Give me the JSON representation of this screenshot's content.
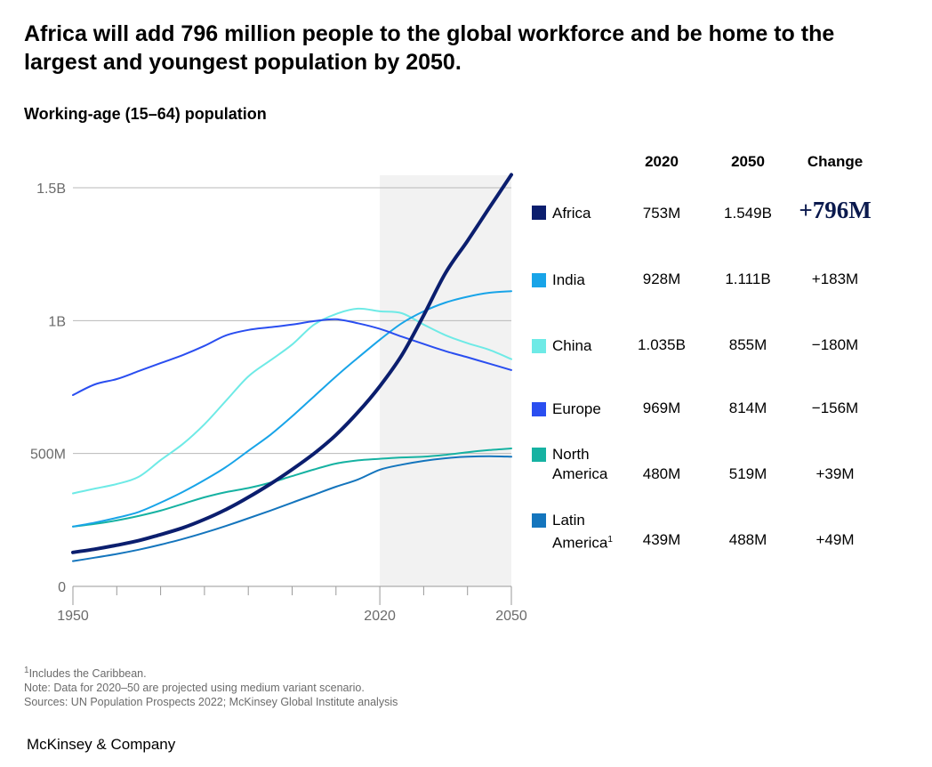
{
  "title": "Africa will add 796 million people to the global workforce and be home to the largest and youngest population by 2050.",
  "subtitle": "Working-age (15–64) population",
  "table": {
    "headers": {
      "col2020": "2020",
      "col2050": "2050",
      "change": "Change"
    },
    "rows": [
      {
        "name": "Africa",
        "sup": "",
        "color": "#0b1e6e",
        "v2020": "753M",
        "v2050": "1.549B",
        "change": "+796M"
      },
      {
        "name": "India",
        "sup": "",
        "color": "#18a4e8",
        "v2020": "928M",
        "v2050": "1.111B",
        "change": "+183M"
      },
      {
        "name": "China",
        "sup": "",
        "color": "#6eeae6",
        "v2020": "1.035B",
        "v2050": "855M",
        "change": "−180M"
      },
      {
        "name": "Europe",
        "sup": "",
        "color": "#2a4ef0",
        "v2020": "969M",
        "v2050": "814M",
        "change": "−156M"
      },
      {
        "name": "North America",
        "sup": "",
        "color": "#16b2a2",
        "v2020": "480M",
        "v2050": "519M",
        "change": "+39M"
      },
      {
        "name": "Latin America",
        "sup": "1",
        "color": "#1475bd",
        "v2020": "439M",
        "v2050": "488M",
        "change": "+49M"
      }
    ]
  },
  "footnotes": {
    "note1_sup": "1",
    "note1": "Includes the Caribbean.",
    "note2": "Note: Data for 2020–50 are projected using medium variant scenario.",
    "note3": "Sources: UN Population Prospects 2022; McKinsey Global Institute analysis"
  },
  "brand": "McKinsey & Company",
  "chart_data": {
    "type": "line",
    "title": "Working-age (15–64) population",
    "xlabel": "",
    "ylabel": "",
    "xlim": [
      1950,
      2050
    ],
    "ylim": [
      0,
      1500
    ],
    "y_ticks": [
      {
        "value": 0,
        "label": "0"
      },
      {
        "value": 500,
        "label": "500M"
      },
      {
        "value": 1000,
        "label": "1B"
      },
      {
        "value": 1500,
        "label": "1.5B"
      }
    ],
    "x_ticks": [
      {
        "value": 1950,
        "label": "1950"
      },
      {
        "value": 2020,
        "label": "2020"
      },
      {
        "value": 2050,
        "label": "2050"
      }
    ],
    "projection_band": [
      2020,
      2050
    ],
    "grid": true,
    "units": "millions",
    "x": [
      1950,
      1955,
      1960,
      1965,
      1970,
      1975,
      1980,
      1985,
      1990,
      1995,
      2000,
      2005,
      2010,
      2015,
      2020,
      2025,
      2030,
      2035,
      2040,
      2045,
      2050
    ],
    "series": [
      {
        "name": "Latin America",
        "color": "#1475bd",
        "width": 2,
        "values": [
          95,
          108,
          122,
          138,
          157,
          178,
          202,
          228,
          256,
          285,
          315,
          345,
          375,
          402,
          439,
          458,
          472,
          482,
          488,
          490,
          488
        ]
      },
      {
        "name": "North America",
        "color": "#16b2a2",
        "width": 2,
        "values": [
          225,
          235,
          248,
          265,
          285,
          310,
          335,
          355,
          370,
          390,
          415,
          440,
          462,
          474,
          480,
          485,
          488,
          495,
          505,
          513,
          519
        ]
      },
      {
        "name": "China",
        "color": "#6eeae6",
        "width": 2,
        "values": [
          350,
          368,
          385,
          412,
          475,
          535,
          610,
          700,
          790,
          850,
          910,
          985,
          1025,
          1045,
          1035,
          1028,
          985,
          945,
          915,
          890,
          855
        ]
      },
      {
        "name": "India",
        "color": "#18a4e8",
        "width": 2,
        "values": [
          225,
          240,
          258,
          280,
          315,
          355,
          400,
          450,
          510,
          570,
          640,
          715,
          790,
          860,
          928,
          990,
          1035,
          1068,
          1090,
          1105,
          1111
        ]
      },
      {
        "name": "Europe",
        "color": "#2a4ef0",
        "width": 2,
        "values": [
          720,
          760,
          780,
          810,
          840,
          870,
          905,
          945,
          965,
          975,
          985,
          998,
          1005,
          990,
          969,
          940,
          912,
          885,
          862,
          838,
          814
        ]
      },
      {
        "name": "Africa",
        "color": "#0b1e6e",
        "width": 4,
        "values": [
          128,
          140,
          155,
          172,
          195,
          220,
          252,
          290,
          335,
          385,
          440,
          500,
          570,
          655,
          753,
          870,
          1020,
          1180,
          1300,
          1425,
          1549
        ]
      }
    ]
  }
}
